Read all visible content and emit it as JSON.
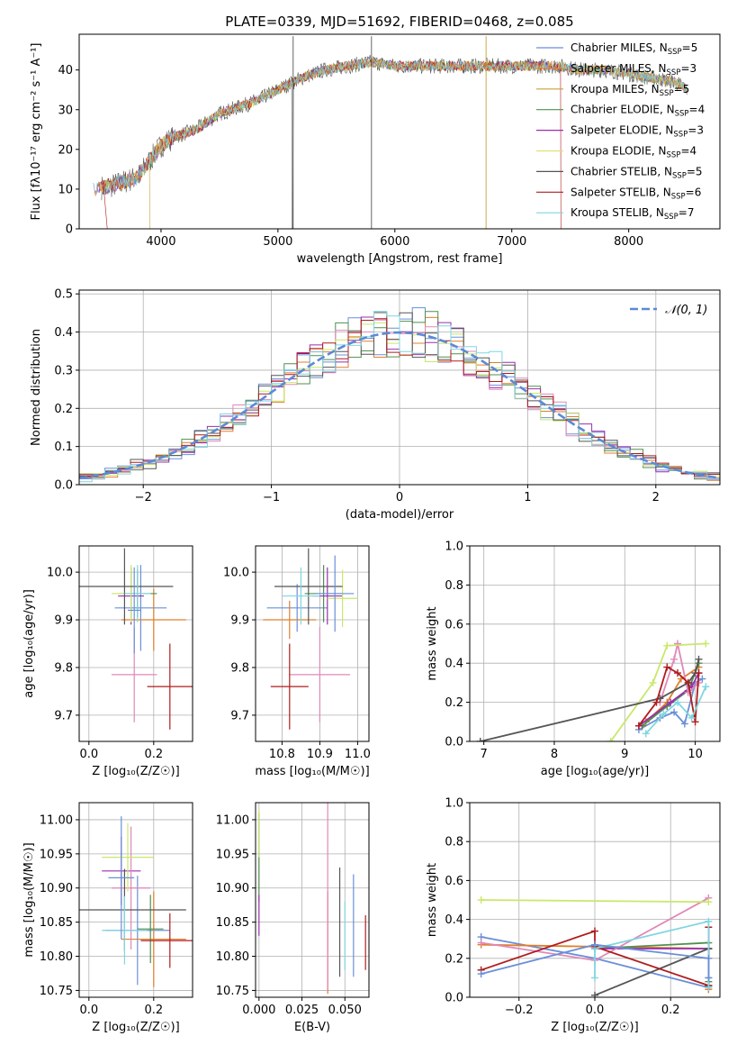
{
  "figure_title": "PLATE=0339, MJD=51692, FIBERID=0468, z=0.085",
  "colors": {
    "series": [
      "#6a8fd8",
      "#e07f2c",
      "#c8a03a",
      "#4f8f4f",
      "#9b2fae",
      "#e0e070",
      "#555555",
      "#b01c1c",
      "#7fd6e0"
    ],
    "hist": [
      "#6a8fd8",
      "#e07f2c",
      "#4f8f4f",
      "#9b2fae",
      "#e088b8",
      "#c8e86a",
      "#555555",
      "#b01c1c",
      "#7fd6e0"
    ],
    "normal": "#5b8ad6"
  },
  "chart_data": [
    {
      "id": "spectrum",
      "type": "line",
      "title": "PLATE=0339, MJD=51692, FIBERID=0468, z=0.085",
      "xlabel": "wavelength [Angstrom, rest frame]",
      "ylabel": "Flux [fλ10⁻¹⁷ erg cm⁻² s⁻¹ A⁻¹]",
      "xlim": [
        3300,
        8780
      ],
      "ylim": [
        0,
        49
      ],
      "xticks": [
        4000,
        5000,
        6000,
        7000,
        8000
      ],
      "yticks": [
        0,
        10,
        20,
        30,
        40
      ],
      "grid": false,
      "legend_position": "top-right",
      "legend": [
        {
          "prefix": "Chabrier MILES, N",
          "sub": "SSP",
          "suffix": "=5"
        },
        {
          "prefix": "Salpeter MILES, N",
          "sub": "SSP",
          "suffix": "=3"
        },
        {
          "prefix": "Kroupa MILES, N",
          "sub": "SSP",
          "suffix": "=5"
        },
        {
          "prefix": "Chabrier ELODIE, N",
          "sub": "SSP",
          "suffix": "=4"
        },
        {
          "prefix": "Salpeter ELODIE, N",
          "sub": "SSP",
          "suffix": "=3"
        },
        {
          "prefix": "Kroupa ELODIE, N",
          "sub": "SSP",
          "suffix": "=4"
        },
        {
          "prefix": "Chabrier STELIB, N",
          "sub": "SSP",
          "suffix": "=5"
        },
        {
          "prefix": "Salpeter STELIB, N",
          "sub": "SSP",
          "suffix": "=6"
        },
        {
          "prefix": "Kroupa STELIB, N",
          "sub": "SSP",
          "suffix": "=7"
        }
      ],
      "continuum": {
        "x": [
          3420,
          3600,
          3800,
          3900,
          4000,
          4100,
          4200,
          4300,
          4400,
          4500,
          4600,
          4800,
          5000,
          5200,
          5400,
          5600,
          5800,
          6000,
          6200,
          6400,
          6600,
          6800,
          7000,
          7200,
          7400,
          7600,
          7800,
          8000,
          8200,
          8400,
          8500
        ],
        "y": [
          10,
          11,
          13,
          17,
          21,
          23,
          24,
          25,
          27,
          29,
          30,
          32,
          35,
          38,
          40,
          41,
          42,
          41,
          41,
          41,
          41,
          41,
          41,
          41,
          41,
          40,
          40,
          39,
          38,
          37,
          35
        ]
      }
    },
    {
      "id": "residuals",
      "type": "histogram",
      "xlabel": "(data-model)/error",
      "ylabel": "Normed distribution",
      "xlim": [
        -2.5,
        2.5
      ],
      "ylim": [
        0,
        0.51
      ],
      "xticks": [
        -2,
        -1,
        0,
        1,
        2
      ],
      "yticks": [
        0.0,
        0.1,
        0.2,
        0.3,
        0.4,
        0.5
      ],
      "bin_edges": [
        -2.5,
        2.5
      ],
      "bins": 50,
      "grid": true,
      "legend_position": "top-right",
      "reference_curve": {
        "label": "𝒩(0, 1)",
        "mean": 0,
        "sigma": 1
      }
    },
    {
      "id": "age-vs-Z",
      "type": "errorbar",
      "xlabel": "Z [log₁₀(Z/Z☉)]",
      "ylabel": "age  [log₁₀(age/yr)]",
      "xlim": [
        -0.03,
        0.32
      ],
      "ylim": [
        9.645,
        10.055
      ],
      "xticks": [
        0.0,
        0.2
      ],
      "yticks": [
        9.7,
        9.8,
        9.9,
        10.0
      ],
      "grid": true,
      "points": [
        {
          "x": 0.16,
          "y": 9.925,
          "xerr": 0.08,
          "yerr": 0.09
        },
        {
          "x": 0.2,
          "y": 9.9,
          "xerr": 0.1,
          "yerr": 0.065
        },
        {
          "x": 0.15,
          "y": 9.955,
          "xerr": 0.06,
          "yerr": 0.05
        },
        {
          "x": 0.13,
          "y": 9.95,
          "xerr": 0.04,
          "yerr": 0.06
        },
        {
          "x": 0.14,
          "y": 9.785,
          "xerr": 0.07,
          "yerr": 0.1
        },
        {
          "x": 0.13,
          "y": 9.955,
          "xerr": 0.06,
          "yerr": 0.06
        },
        {
          "x": 0.11,
          "y": 9.97,
          "xerr": 0.15,
          "yerr": 0.08
        },
        {
          "x": 0.25,
          "y": 9.76,
          "xerr": 0.07,
          "yerr": 0.09
        },
        {
          "x": 0.15,
          "y": 9.955,
          "xerr": 0.04,
          "yerr": 0.06
        },
        {
          "x": 0.14,
          "y": 9.92,
          "xerr": 0.02,
          "yerr": 0.09
        }
      ]
    },
    {
      "id": "age-vs-mass",
      "type": "errorbar",
      "xlabel": "mass [log₁₀(M/M☉)]",
      "ylabel": "",
      "xlim": [
        10.73,
        11.03
      ],
      "ylim": [
        9.645,
        10.055
      ],
      "xticks": [
        10.8,
        10.9,
        11.0
      ],
      "yticks": [
        9.7,
        9.8,
        9.9,
        10.0
      ],
      "grid": true,
      "points": [
        {
          "x": 10.84,
          "y": 9.925,
          "xerr": 0.08,
          "yerr": 0.05
        },
        {
          "x": 10.82,
          "y": 9.9,
          "xerr": 0.07,
          "yerr": 0.04
        },
        {
          "x": 10.91,
          "y": 9.955,
          "xerr": 0.05,
          "yerr": 0.06
        },
        {
          "x": 10.92,
          "y": 9.95,
          "xerr": 0.04,
          "yerr": 0.06
        },
        {
          "x": 10.9,
          "y": 9.785,
          "xerr": 0.08,
          "yerr": 0.1
        },
        {
          "x": 10.96,
          "y": 9.945,
          "xerr": 0.04,
          "yerr": 0.06
        },
        {
          "x": 10.87,
          "y": 9.97,
          "xerr": 0.09,
          "yerr": 0.08
        },
        {
          "x": 10.82,
          "y": 9.76,
          "xerr": 0.05,
          "yerr": 0.09
        },
        {
          "x": 10.85,
          "y": 9.95,
          "xerr": 0.05,
          "yerr": 0.06
        },
        {
          "x": 10.94,
          "y": 9.955,
          "xerr": 0.05,
          "yerr": 0.08
        }
      ]
    },
    {
      "id": "mass-weight-vs-age",
      "type": "line",
      "xlabel": "age  [log₁₀(age/yr)]",
      "ylabel": "mass weight",
      "xlim": [
        6.8,
        10.35
      ],
      "ylim": [
        0.0,
        1.0
      ],
      "xticks": [
        7,
        8,
        9,
        10
      ],
      "yticks": [
        0.0,
        0.2,
        0.4,
        0.6,
        0.8,
        1.0
      ],
      "grid": true,
      "series": [
        {
          "x": [
            9.2,
            9.5,
            9.7,
            9.85,
            10.0,
            10.1
          ],
          "y": [
            0.06,
            0.12,
            0.15,
            0.09,
            0.3,
            0.32
          ]
        },
        {
          "x": [
            9.3,
            9.6,
            9.8,
            10.05
          ],
          "y": [
            0.1,
            0.2,
            0.32,
            0.38
          ]
        },
        {
          "x": [
            9.25,
            9.6,
            9.9,
            10.05
          ],
          "y": [
            0.08,
            0.18,
            0.26,
            0.4
          ]
        },
        {
          "x": [
            9.2,
            9.65,
            9.95,
            10.05
          ],
          "y": [
            0.08,
            0.2,
            0.28,
            0.35
          ]
        },
        {
          "x": [
            9.5,
            9.7,
            9.75,
            9.9,
            10.05
          ],
          "y": [
            0.2,
            0.42,
            0.5,
            0.25,
            0.3
          ]
        },
        {
          "x": [
            8.8,
            9.4,
            9.6,
            10.15
          ],
          "y": [
            0.0,
            0.3,
            0.49,
            0.5
          ]
        },
        {
          "x": [
            6.95,
            9.5,
            9.9,
            10.0,
            10.05
          ],
          "y": [
            0.0,
            0.22,
            0.3,
            0.35,
            0.42
          ]
        },
        {
          "x": [
            9.2,
            9.45,
            9.6,
            9.75,
            9.9,
            10.0,
            10.05
          ],
          "y": [
            0.08,
            0.2,
            0.38,
            0.35,
            0.3,
            0.1,
            0.35
          ]
        },
        {
          "x": [
            9.3,
            9.55,
            9.75,
            9.95,
            10.15
          ],
          "y": [
            0.04,
            0.14,
            0.2,
            0.12,
            0.28
          ]
        }
      ]
    },
    {
      "id": "mass-vs-Z",
      "type": "errorbar",
      "xlabel": "Z [log₁₀(Z/Z☉)]",
      "ylabel": "mass [log₁₀(M/M☉)]",
      "xlim": [
        -0.03,
        0.32
      ],
      "ylim": [
        10.74,
        11.025
      ],
      "xticks": [
        0.0,
        0.2
      ],
      "yticks": [
        10.75,
        10.8,
        10.85,
        10.9,
        10.95,
        11.0
      ],
      "grid": true,
      "points": [
        {
          "x": 0.15,
          "y": 10.838,
          "xerr": 0.1,
          "yerr": 0.08
        },
        {
          "x": 0.2,
          "y": 10.825,
          "xerr": 0.1,
          "yerr": 0.07
        },
        {
          "x": 0.19,
          "y": 10.84,
          "xerr": 0.04,
          "yerr": 0.05
        },
        {
          "x": 0.1,
          "y": 10.925,
          "xerr": 0.06,
          "yerr": 0.05
        },
        {
          "x": 0.13,
          "y": 10.9,
          "xerr": 0.06,
          "yerr": 0.09
        },
        {
          "x": 0.12,
          "y": 10.945,
          "xerr": 0.08,
          "yerr": 0.05
        },
        {
          "x": 0.11,
          "y": 10.868,
          "xerr": 0.19,
          "yerr": 0.06
        },
        {
          "x": 0.25,
          "y": 10.823,
          "xerr": 0.09,
          "yerr": 0.04
        },
        {
          "x": 0.11,
          "y": 10.838,
          "xerr": 0.07,
          "yerr": 0.05
        },
        {
          "x": 0.1,
          "y": 10.915,
          "xerr": 0.04,
          "yerr": 0.09
        }
      ]
    },
    {
      "id": "mass-vs-EBV",
      "type": "errorbar",
      "xlabel": "E(B-V)",
      "ylabel": "",
      "xlim": [
        -0.002,
        0.064
      ],
      "ylim": [
        10.74,
        11.025
      ],
      "xticks": [
        0.0,
        0.025,
        0.05
      ],
      "yticks": [
        10.75,
        10.8,
        10.85,
        10.9,
        10.95,
        11.0
      ],
      "grid": true,
      "points": [
        {
          "x": 0.055,
          "y": 10.845,
          "xerr": 0,
          "yerr": 0.075
        },
        {
          "x": 0.04,
          "y": 10.82,
          "xerr": 0,
          "yerr": 0.075
        },
        {
          "x": 0.0,
          "y": 10.945,
          "xerr": 0,
          "yerr": 0.065
        },
        {
          "x": 0.0,
          "y": 10.86,
          "xerr": 0,
          "yerr": 0.03
        },
        {
          "x": 0.04,
          "y": 10.93,
          "xerr": 0,
          "yerr": 0.18
        },
        {
          "x": 0.0,
          "y": 10.98,
          "xerr": 0,
          "yerr": 0.035
        },
        {
          "x": 0.047,
          "y": 10.85,
          "xerr": 0,
          "yerr": 0.08
        },
        {
          "x": 0.062,
          "y": 10.82,
          "xerr": 0,
          "yerr": 0.04
        },
        {
          "x": 0.05,
          "y": 10.83,
          "xerr": 0,
          "yerr": 0.05
        }
      ]
    },
    {
      "id": "mass-weight-vs-Z",
      "type": "line",
      "xlabel": "Z [log₁₀(Z/Z☉)]",
      "ylabel": "mass weight",
      "xlim": [
        -0.33,
        0.33
      ],
      "ylim": [
        0.0,
        1.0
      ],
      "xticks": [
        -0.2,
        0.0,
        0.2
      ],
      "yticks": [
        0.0,
        0.2,
        0.4,
        0.6,
        0.8,
        1.0
      ],
      "grid": true,
      "series": [
        {
          "x": [
            -0.3,
            0.0,
            0.3,
            0.3
          ],
          "y": [
            0.31,
            0.2,
            0.05,
            0.1
          ]
        },
        {
          "x": [
            -0.3,
            0.3,
            0.3
          ],
          "y": [
            0.27,
            0.25,
            0.04
          ]
        },
        {
          "x": [
            0.0,
            0.3,
            0.3
          ],
          "y": [
            0.25,
            0.28,
            0.08
          ]
        },
        {
          "x": [
            0.0,
            0.3,
            0.3
          ],
          "y": [
            0.25,
            0.25,
            0.06
          ]
        },
        {
          "x": [
            -0.3,
            0.0,
            0.3
          ],
          "y": [
            0.28,
            0.19,
            0.51
          ]
        },
        {
          "x": [
            -0.3,
            0.3
          ],
          "y": [
            0.5,
            0.49
          ]
        },
        {
          "x": [
            0.0,
            0.3,
            0.3
          ],
          "y": [
            0.01,
            0.25,
            0.06
          ]
        },
        {
          "x": [
            -0.3,
            0.0,
            0.0,
            0.3,
            0.3
          ],
          "y": [
            0.14,
            0.34,
            0.26,
            0.06,
            0.36
          ]
        },
        {
          "x": [
            0.0,
            0.0,
            0.3,
            0.3
          ],
          "y": [
            0.1,
            0.25,
            0.39,
            0.05
          ]
        },
        {
          "x": [
            -0.3,
            0.0,
            0.3,
            0.3
          ],
          "y": [
            0.12,
            0.27,
            0.2,
            0.1
          ]
        }
      ]
    }
  ]
}
